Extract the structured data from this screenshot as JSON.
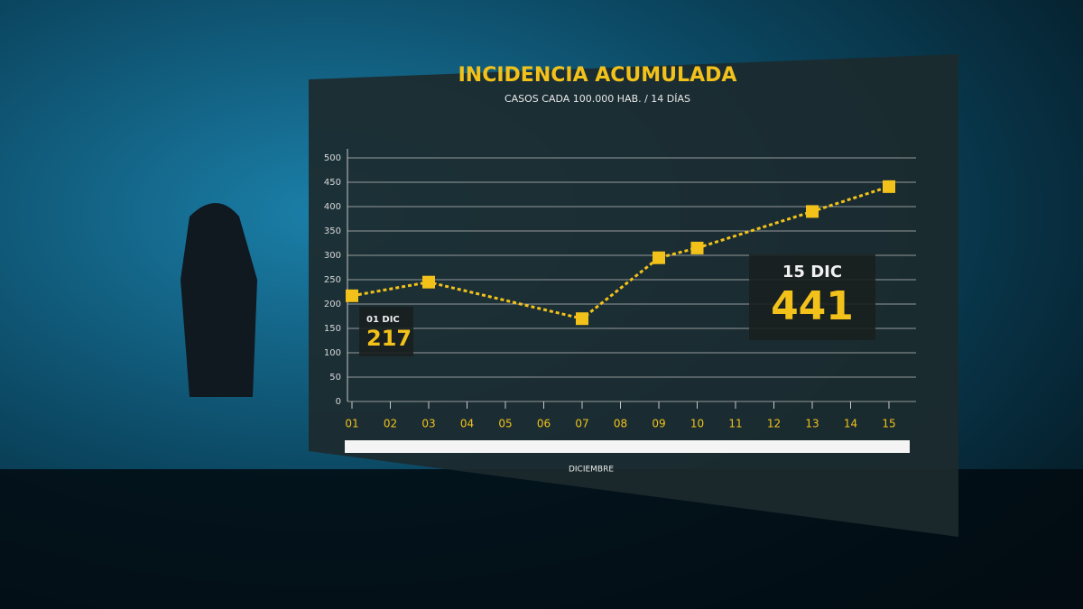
{
  "chart_data": {
    "type": "line",
    "title": "INCIDENCIA ACUMULADA",
    "subtitle": "CASOS CADA 100.000 HAB. / 14 DÍAS",
    "x_label": "DICIEMBRE",
    "x": [
      1,
      3,
      7,
      9,
      10,
      13,
      15
    ],
    "values": [
      217,
      245,
      170,
      295,
      315,
      390,
      441
    ],
    "color": "#f2c21b",
    "xlim": [
      1,
      15
    ],
    "xticks": [
      {
        "value": 1,
        "label": "01"
      },
      {
        "value": 2,
        "label": "02"
      },
      {
        "value": 3,
        "label": "03"
      },
      {
        "value": 4,
        "label": "04"
      },
      {
        "value": 5,
        "label": "05"
      },
      {
        "value": 6,
        "label": "06"
      },
      {
        "value": 7,
        "label": "07"
      },
      {
        "value": 8,
        "label": "08"
      },
      {
        "value": 9,
        "label": "09"
      },
      10,
      11,
      12,
      13,
      14,
      15
    ],
    "ylim": [
      0,
      500
    ],
    "yticks": [
      0,
      50,
      100,
      150,
      200,
      250,
      300,
      350,
      400,
      450,
      500
    ],
    "grid": true,
    "annotations": [
      {
        "label": "01 DIC",
        "point": 0
      },
      {
        "label": "15 DIC",
        "point": 6
      }
    ]
  }
}
